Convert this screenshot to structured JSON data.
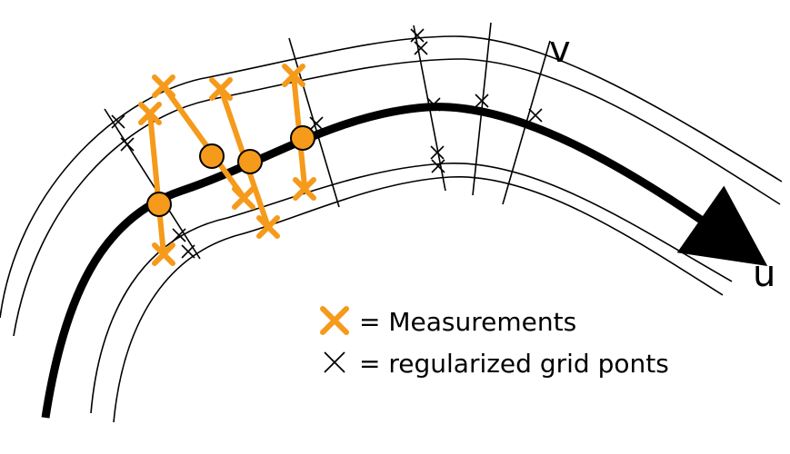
{
  "axes": {
    "u_label": "u",
    "v_label": "v"
  },
  "legend": {
    "measurements_label": "= Measurements",
    "grid_points_label": "= regularized grid ponts"
  },
  "colors": {
    "measurement": "#f59a1b",
    "grid": "#000000",
    "curve": "#000000"
  },
  "icons": {
    "measurement_marker": "cross-icon",
    "grid_marker": "cross-icon",
    "sample_point": "circle-icon"
  }
}
